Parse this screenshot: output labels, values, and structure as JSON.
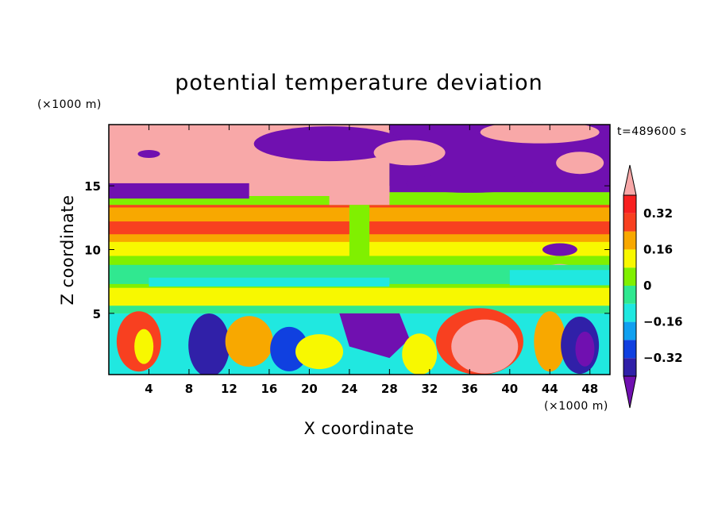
{
  "chart_data": {
    "type": "heatmap",
    "title": "potential temperature deviation",
    "xlabel": "X coordinate",
    "ylabel": "Z coordinate",
    "x_unit": "(×1000 m)",
    "y_unit": "(×1000 m)",
    "time_label": "t=489600 s",
    "xlim": [
      0,
      50
    ],
    "ylim": [
      0.2,
      19.8
    ],
    "x_ticks": [
      "4",
      "8",
      "12",
      "16",
      "20",
      "24",
      "28",
      "32",
      "36",
      "40",
      "44",
      "48"
    ],
    "x_tick_values": [
      4,
      8,
      12,
      16,
      20,
      24,
      28,
      32,
      36,
      40,
      44,
      48
    ],
    "y_ticks": [
      "5",
      "10",
      "15"
    ],
    "y_tick_values": [
      5,
      10,
      15
    ],
    "colorbar": {
      "levels": [
        -0.4,
        -0.32,
        -0.24,
        -0.16,
        -0.08,
        0,
        0.08,
        0.16,
        0.24,
        0.32,
        0.4
      ],
      "colors": [
        "#7010b0",
        "#3020a8",
        "#1040e0",
        "#10a0f0",
        "#20e8e0",
        "#30e890",
        "#80f000",
        "#f8f800",
        "#f8a800",
        "#f84020",
        "#f82020",
        "#f8a8a8"
      ],
      "tick_labels": [
        "−0.32",
        "−0.16",
        "0",
        "0.16",
        "0.32"
      ],
      "tick_values": [
        -0.32,
        -0.16,
        0,
        0.16,
        0.32
      ],
      "extend": "both"
    },
    "layers": [
      {
        "z_from": 17.0,
        "z_to": 19.8,
        "pattern": "pink above 17 km west and east, purple region x 12–28 and x 40–50",
        "value_range": [
          -0.4,
          0.4
        ]
      },
      {
        "z_from": 14.0,
        "z_to": 17.0,
        "pattern": "pink west of x=26, purple east",
        "value_range": [
          -0.4,
          0.4
        ]
      },
      {
        "z_from": 11.0,
        "z_to": 13.5,
        "value": 0.3
      },
      {
        "z_from": 9.5,
        "z_to": 11.0,
        "value": 0.12
      },
      {
        "z_from": 7.0,
        "z_to": 9.5,
        "value": 0.02
      },
      {
        "z_from": 5.0,
        "z_to": 7.0,
        "value": 0.08
      },
      {
        "z_from": 0.2,
        "z_to": 5.0,
        "pattern": "turbulent mixed layer, warm blobs near x 2–4, 34–40; cold near x 10, 24–30, 46",
        "value_range": [
          -0.4,
          0.4
        ]
      }
    ]
  }
}
